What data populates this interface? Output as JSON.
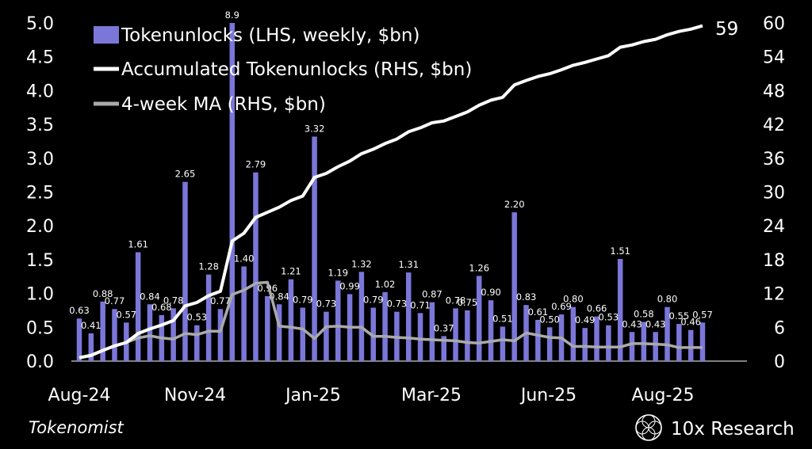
{
  "chart_data": {
    "type": "bar+line",
    "y_left": {
      "ticks": [
        "0.0",
        "0.5",
        "1.0",
        "1.5",
        "2.0",
        "2.5",
        "3.0",
        "3.5",
        "4.0",
        "4.5",
        "5.0"
      ],
      "min": 0,
      "max": 5
    },
    "y_right": {
      "ticks": [
        "0",
        "6",
        "12",
        "18",
        "24",
        "30",
        "36",
        "42",
        "48",
        "54",
        "60"
      ],
      "min": 0,
      "max": 60
    },
    "x_ticks": [
      "Aug-24",
      "Nov-24",
      "Jan-25",
      "Mar-25",
      "Jun-25",
      "Aug-25"
    ],
    "legend": {
      "bars": "Tokenunlocks (LHS, weekly, $bn)",
      "accumulated": "Accumulated Tokenunlocks (RHS, $bn)",
      "ma": "4-week MA (RHS, $bn)"
    },
    "series": [
      {
        "name": "Tokenunlocks (LHS, weekly, $bn)",
        "color": "#7b77d9",
        "values": [
          0.63,
          0.41,
          0.88,
          0.77,
          0.57,
          1.61,
          0.84,
          0.68,
          0.78,
          2.65,
          0.53,
          1.28,
          0.77,
          8.9,
          1.4,
          2.79,
          0.96,
          0.84,
          1.21,
          0.79,
          3.32,
          0.73,
          1.19,
          0.99,
          1.32,
          0.79,
          1.02,
          0.73,
          1.31,
          0.71,
          0.87,
          0.37,
          0.78,
          0.75,
          1.26,
          0.9,
          0.51,
          2.2,
          0.83,
          0.61,
          0.5,
          0.69,
          0.8,
          0.49,
          0.66,
          0.53,
          1.51,
          0.43,
          0.58,
          0.43,
          0.8,
          0.55,
          0.46,
          0.57
        ]
      },
      {
        "name": "Accumulated Tokenunlocks (RHS, $bn)",
        "color": "#ffffff",
        "values": [
          0.6,
          1.0,
          1.9,
          2.7,
          3.3,
          4.9,
          5.7,
          6.4,
          7.2,
          9.8,
          10.4,
          11.6,
          12.4,
          21.3,
          22.7,
          25.5,
          26.4,
          27.3,
          28.5,
          29.3,
          32.6,
          33.3,
          34.5,
          35.5,
          36.8,
          37.6,
          38.6,
          39.4,
          40.7,
          41.4,
          42.3,
          42.6,
          43.4,
          44.2,
          45.4,
          46.3,
          46.8,
          49.0,
          49.8,
          50.5,
          51.0,
          51.7,
          52.5,
          53.0,
          53.6,
          54.2,
          55.7,
          56.1,
          56.7,
          57.1,
          57.9,
          58.5,
          58.9,
          59.5
        ]
      },
      {
        "name": "4-week MA (RHS, $bn)",
        "color": "#aaaaaa",
        "values": [
          0.6,
          1.1,
          1.9,
          2.7,
          3.3,
          4.1,
          4.5,
          4.1,
          3.9,
          4.9,
          4.7,
          5.3,
          5.3,
          11.8,
          12.6,
          13.8,
          14.0,
          6.2,
          6.0,
          5.7,
          4.0,
          6.1,
          6.2,
          6.0,
          6.0,
          4.4,
          4.4,
          4.2,
          4.1,
          3.9,
          3.8,
          3.7,
          3.6,
          3.3,
          3.2,
          3.5,
          3.8,
          3.6,
          5.0,
          4.6,
          4.2,
          4.1,
          2.6,
          2.6,
          2.5,
          2.5,
          2.5,
          3.1,
          3.1,
          3.0,
          2.9,
          2.4,
          2.4,
          2.4
        ]
      }
    ],
    "data_labels": [
      "0.63",
      "0.41",
      "0.88",
      "0.77",
      "0.57",
      "1.61",
      "0.84",
      "0.68",
      "0.78",
      "2.65",
      "0.53",
      "1.28",
      "0.77",
      "8.9",
      "1.40",
      "2.79",
      "0.96",
      "0.84",
      "1.21",
      "0.79",
      "3.32",
      "0.73",
      "1.19",
      "0.99",
      "1.32",
      "0.79",
      "1.02",
      "0.73",
      "1.31",
      "0.71",
      "0.87",
      "0.37",
      "0.78",
      "0.75",
      "1.26",
      "0.90",
      "0.51",
      "2.20",
      "0.83",
      "0.61",
      "0.50",
      "0.69",
      "0.80",
      "0.49",
      "0.66",
      "0.53",
      "1.51",
      "0.43",
      "0.58",
      "0.43",
      "0.80",
      "0.55",
      "0.46",
      "0.57"
    ],
    "end_label": "59"
  },
  "footer": {
    "source": "Tokenomist",
    "brand": "10x Research",
    "brand_icon": "globe-lattice-icon"
  }
}
